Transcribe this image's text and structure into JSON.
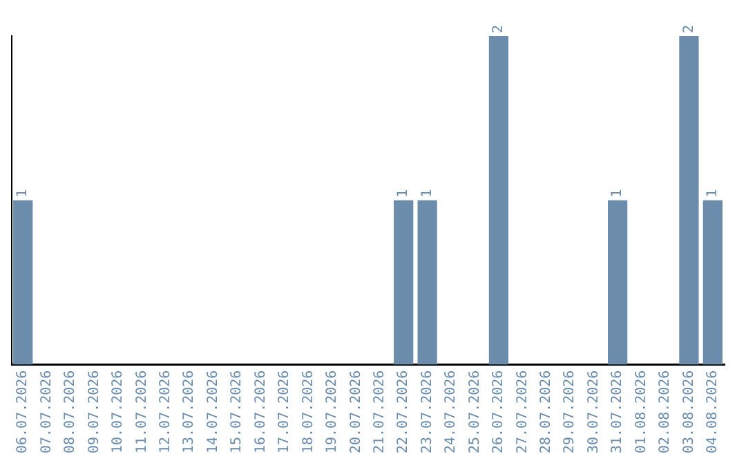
{
  "chart_data": {
    "type": "bar",
    "categories": [
      "06.07.2026",
      "07.07.2026",
      "08.07.2026",
      "09.07.2026",
      "10.07.2026",
      "11.07.2026",
      "12.07.2026",
      "13.07.2026",
      "14.07.2026",
      "15.07.2026",
      "16.07.2026",
      "17.07.2026",
      "18.07.2026",
      "19.07.2026",
      "20.07.2026",
      "21.07.2026",
      "22.07.2026",
      "23.07.2026",
      "24.07.2026",
      "25.07.2026",
      "26.07.2026",
      "27.07.2026",
      "28.07.2026",
      "29.07.2026",
      "30.07.2026",
      "31.07.2026",
      "01.08.2026",
      "02.08.2026",
      "03.08.2026",
      "04.08.2026"
    ],
    "values": [
      1,
      0,
      0,
      0,
      0,
      0,
      0,
      0,
      0,
      0,
      0,
      0,
      0,
      0,
      0,
      0,
      1,
      1,
      0,
      0,
      2,
      0,
      0,
      0,
      0,
      1,
      0,
      0,
      2,
      1
    ],
    "value_labels": [
      "1",
      null,
      null,
      null,
      null,
      null,
      null,
      null,
      null,
      null,
      null,
      null,
      null,
      null,
      null,
      null,
      "1",
      "1",
      null,
      null,
      "2",
      null,
      null,
      null,
      null,
      "1",
      null,
      null,
      "2",
      "1"
    ],
    "color": "#6b8cab",
    "tick_labels": "x",
    "grid": false,
    "legend": false
  }
}
